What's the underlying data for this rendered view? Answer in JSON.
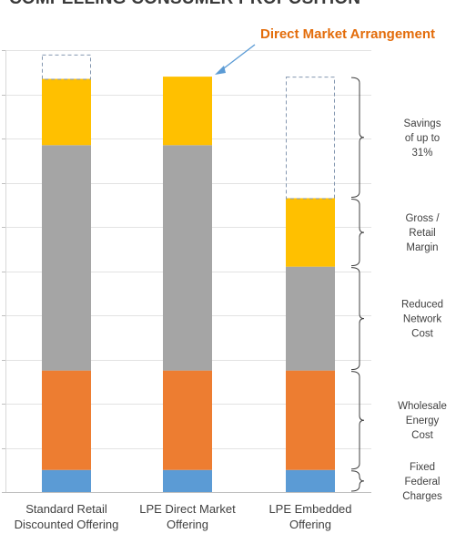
{
  "title": "COMPELLING CONSUMER PROPOSITION",
  "colors": {
    "fixed_federal": "#5b9bd5",
    "wholesale": "#ed7d31",
    "network": "#a5a5a5",
    "margin": "#ffc000",
    "callout": "#e36c0a",
    "arrow": "#5b9bd5",
    "dashed": "#8497b0"
  },
  "callout": "Direct Market Arrangement",
  "chart_data": {
    "type": "bar",
    "stacked": true,
    "categories": [
      [
        "Standard Retail",
        "Discounted Offering"
      ],
      [
        "LPE Direct Market",
        "Offering"
      ],
      [
        "LPE Embedded",
        "Offering"
      ]
    ],
    "series": [
      {
        "key": "fixed_federal",
        "values": [
          5,
          5,
          5
        ]
      },
      {
        "key": "wholesale",
        "values": [
          22.5,
          22.5,
          22.5
        ]
      },
      {
        "key": "network",
        "values": [
          51,
          51,
          23.5
        ]
      },
      {
        "key": "margin",
        "values": [
          15,
          15.5,
          15.5
        ]
      }
    ],
    "dashed_box": [
      {
        "category": 0,
        "from": 93.5,
        "to": 99
      },
      {
        "category": 2,
        "from": 66.5,
        "to": 94
      }
    ],
    "ylim": [
      0,
      100
    ],
    "ytick_step": 10,
    "tick_labels_shown": false,
    "annotations": [
      {
        "lines": [
          "Savings",
          "of up to",
          "31%"
        ],
        "from": 66.5,
        "to": 94
      },
      {
        "lines": [
          "Gross /",
          "Retail",
          "Margin"
        ],
        "from": 51,
        "to": 66.5
      },
      {
        "lines": [
          "Reduced",
          "Network",
          "Cost"
        ],
        "from": 27.5,
        "to": 51
      },
      {
        "lines": [
          "Wholesale",
          "Energy",
          "Cost"
        ],
        "from": 5,
        "to": 27.5
      },
      {
        "lines": [
          "Fixed",
          "Federal",
          "Charges"
        ],
        "from": 0,
        "to": 5
      }
    ]
  }
}
